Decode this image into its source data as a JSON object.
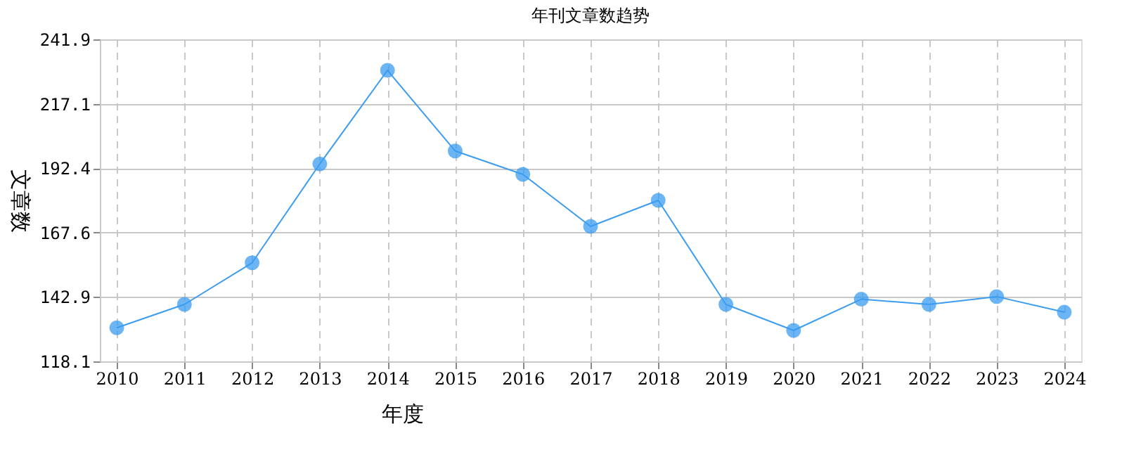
{
  "chart_data": {
    "type": "line",
    "title": "年刊文章数趋势",
    "xlabel": "年度",
    "ylabel": "文章数",
    "categories": [
      "2010",
      "2011",
      "2012",
      "2013",
      "2014",
      "2015",
      "2016",
      "2017",
      "2018",
      "2019",
      "2020",
      "2021",
      "2022",
      "2023",
      "2024"
    ],
    "series": [
      {
        "color": "#3b9cf0",
        "values": [
          131,
          140,
          156,
          194,
          230,
          199,
          190,
          170,
          180,
          140,
          130,
          142,
          140,
          143,
          137
        ]
      }
    ],
    "ylim": [
      118.1,
      241.9
    ],
    "yticks": [
      118.1,
      142.9,
      167.6,
      192.4,
      217.1,
      241.9
    ],
    "grid": true,
    "marker": "circle",
    "line_style": "solid",
    "legend": false
  }
}
